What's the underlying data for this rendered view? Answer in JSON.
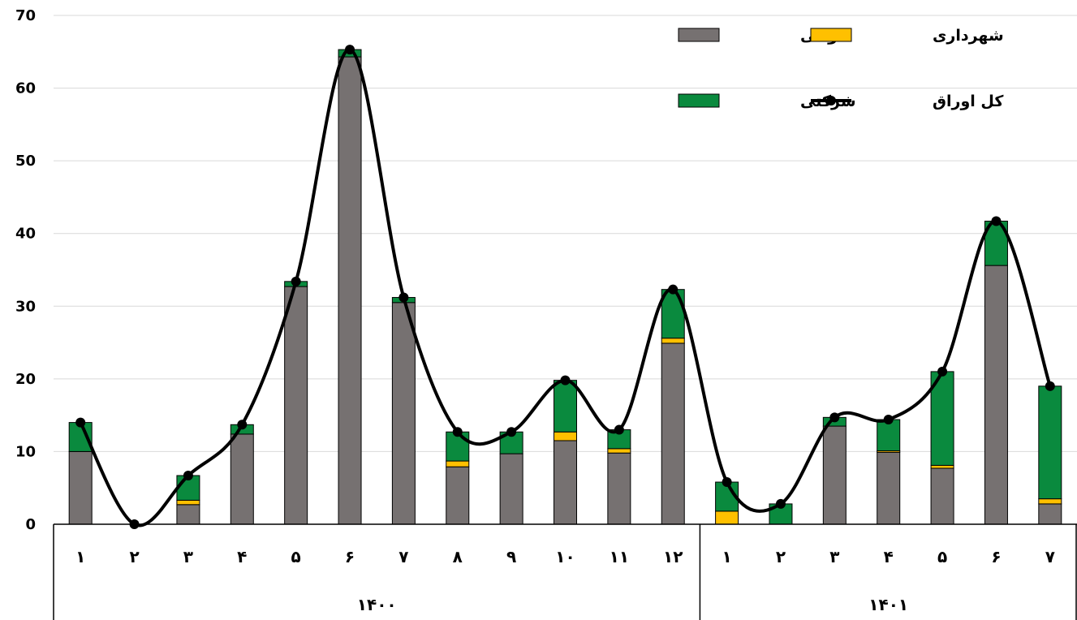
{
  "chart_data": {
    "type": "bar",
    "stacked": true,
    "ylim": [
      0,
      70
    ],
    "yticks": [
      "0",
      "10",
      "20",
      "30",
      "40",
      "50",
      "60",
      "70"
    ],
    "grid": true,
    "legend_position": "top-right",
    "groups": [
      {
        "label": "۱۴۰۰",
        "categories": [
          "۱",
          "۲",
          "۳",
          "۴",
          "۵",
          "۶",
          "۷",
          "۸",
          "۹",
          "۱۰",
          "۱۱",
          "۱۲"
        ]
      },
      {
        "label": "۱۴۰۱",
        "categories": [
          "۱",
          "۲",
          "۳",
          "۴",
          "۵",
          "۶",
          "۷"
        ]
      }
    ],
    "series": [
      {
        "name": "دولتی",
        "kind": "bar",
        "color": "#767171",
        "values": [
          10,
          0,
          2.7,
          12.4,
          32.7,
          64.3,
          30.5,
          7.9,
          9.7,
          11.5,
          9.8,
          24.9,
          0,
          0,
          13.5,
          9.9,
          7.7,
          35.6,
          2.8
        ]
      },
      {
        "name": "شهرداری",
        "kind": "bar",
        "color": "#FFC000",
        "values": [
          0,
          0,
          0.6,
          0,
          0,
          0,
          0,
          0.8,
          0,
          1.2,
          0.6,
          0.7,
          1.8,
          0,
          0,
          0.2,
          0.4,
          0,
          0.7
        ]
      },
      {
        "name": "شرکتی",
        "kind": "bar",
        "color": "#0A8A3E",
        "values": [
          4,
          0,
          3.4,
          1.3,
          0.7,
          1,
          0.7,
          4,
          3,
          7.1,
          2.6,
          6.7,
          4,
          2.8,
          1.2,
          4.3,
          12.9,
          6.1,
          15.5
        ]
      },
      {
        "name": "کل اوراق",
        "kind": "line",
        "color": "#000000",
        "values": [
          14,
          0,
          6.7,
          13.7,
          33.4,
          65.3,
          31.2,
          12.7,
          12.7,
          19.8,
          13,
          32.3,
          5.8,
          2.8,
          14.7,
          14.4,
          21,
          41.7,
          19
        ]
      }
    ]
  }
}
